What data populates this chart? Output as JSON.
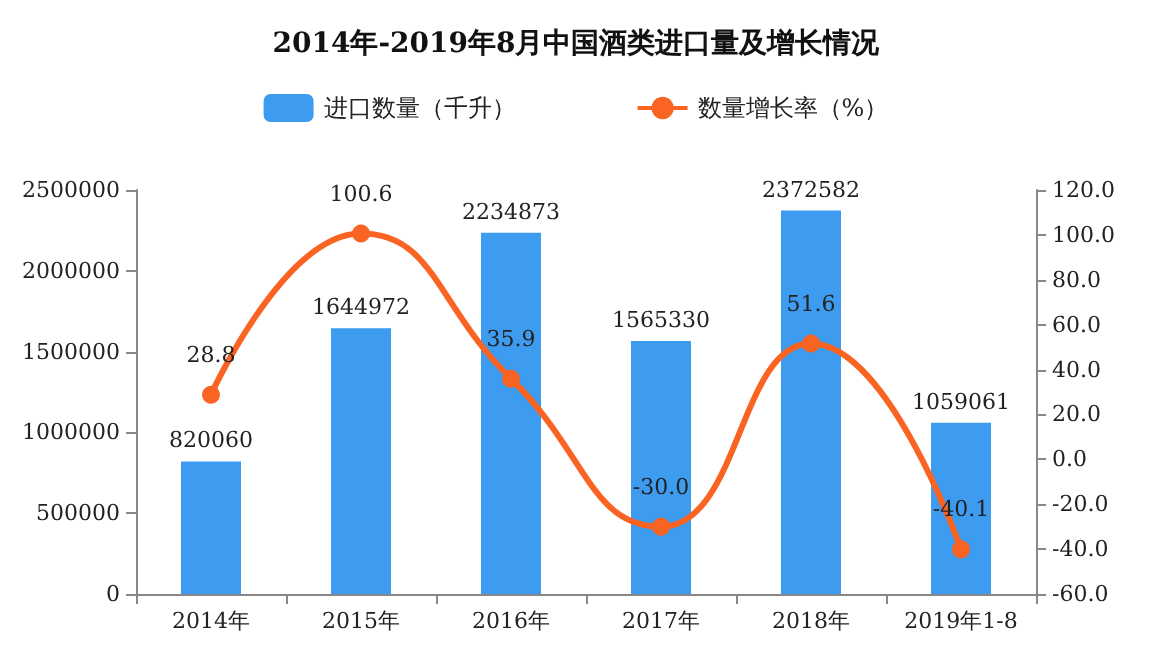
{
  "chart_data": {
    "type": "bar",
    "title": "2014年-2019年8月中国酒类进口量及增长情况",
    "categories": [
      "2014年",
      "2015年",
      "2016年",
      "2017年",
      "2018年",
      "2019年1-8"
    ],
    "series": [
      {
        "name": "进口数量（千升）",
        "color": "#3d9bf0",
        "values": [
          820060,
          1644972,
          2234873,
          1565330,
          2372582,
          1059061
        ]
      },
      {
        "name": "数量增长率（%）",
        "type": "line",
        "axis": "y2",
        "color": "#fa6423",
        "marker": "circle",
        "values": [
          28.8,
          100.6,
          35.9,
          -30.0,
          51.6,
          -40.1
        ],
        "value_labels": [
          "28.8",
          "100.6",
          "35.9",
          "-30.0",
          "51.6",
          "-40.1"
        ]
      }
    ],
    "ylim": [
      0,
      2500000
    ],
    "yticks": [
      0,
      500000,
      1000000,
      1500000,
      2000000,
      2500000
    ],
    "y2lim": [
      -60,
      120
    ],
    "y2ticks": [
      {
        "value": -60,
        "label": "-60.0"
      },
      {
        "value": -40,
        "label": "-40.0"
      },
      {
        "value": -20,
        "label": "-20.0"
      },
      {
        "value": 0,
        "label": "0.0"
      },
      {
        "value": 20,
        "label": "20.0"
      },
      {
        "value": 40,
        "label": "40.0"
      },
      {
        "value": 60,
        "label": "60.0"
      },
      {
        "value": 80,
        "label": "80.0"
      },
      {
        "value": 100,
        "label": "100.0"
      },
      {
        "value": 120,
        "label": "120.0"
      }
    ],
    "data_labels": true,
    "legend": "top",
    "grid": false
  }
}
